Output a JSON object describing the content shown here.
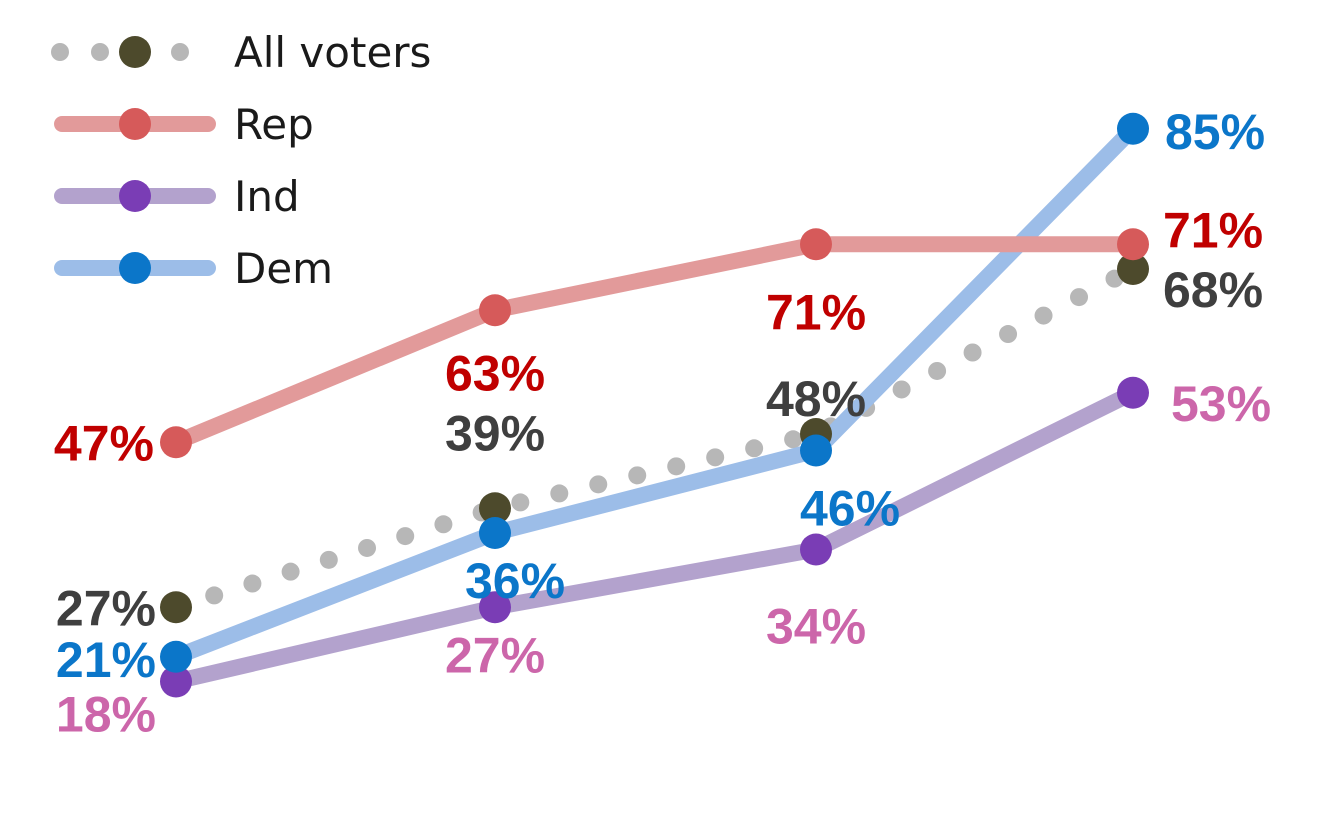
{
  "chart_data": {
    "type": "line",
    "title": "",
    "xlabel": "",
    "ylabel": "",
    "categories": [
      "",
      "",
      "",
      ""
    ],
    "ylim": [
      0,
      100
    ],
    "grid": false,
    "legend_position": "top-left",
    "series": [
      {
        "name": "All voters",
        "values": [
          27,
          39,
          48,
          68
        ],
        "labels": [
          "27%",
          "39%",
          "48%",
          "68%"
        ],
        "line_color": "#b7b7b7",
        "marker_color": "#4d4a2c",
        "label_color": "#3f3f3f",
        "line_style": "dotted"
      },
      {
        "name": "Rep",
        "values": [
          47,
          63,
          71,
          71
        ],
        "labels": [
          "47%",
          "63%",
          "71%",
          "71%"
        ],
        "line_color": "#e29a9a",
        "marker_color": "#d65a5a",
        "label_color": "#c00000",
        "line_style": "solid"
      },
      {
        "name": "Ind",
        "values": [
          18,
          27,
          34,
          53
        ],
        "labels": [
          "18%",
          "27%",
          "34%",
          "53%"
        ],
        "line_color": "#b3a2cd",
        "marker_color": "#7a3db5",
        "label_color": "#cc66aa",
        "line_style": "solid"
      },
      {
        "name": "Dem",
        "values": [
          21,
          36,
          46,
          85
        ],
        "labels": [
          "21%",
          "36%",
          "46%",
          "85%"
        ],
        "line_color": "#9cbde8",
        "marker_color": "#0b76c9",
        "label_color": "#0b76c9",
        "line_style": "solid"
      }
    ]
  }
}
